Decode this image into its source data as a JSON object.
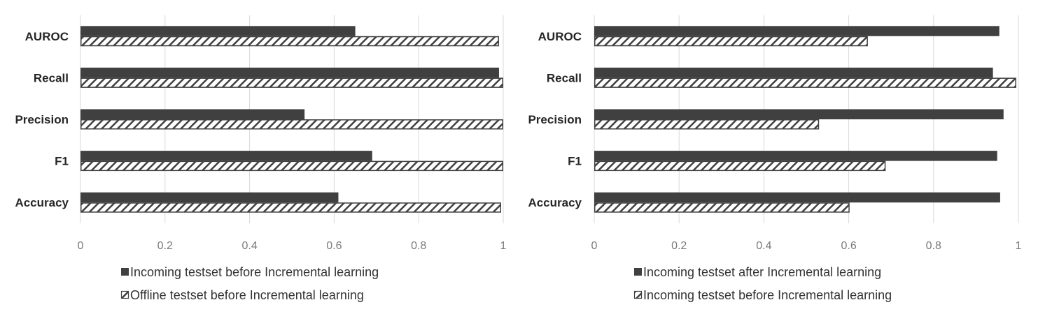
{
  "colors": {
    "solid": "#404040",
    "hatch_stroke": "#404040",
    "grid": "#d9d9d9",
    "background": "#ffffff"
  },
  "chart_data": [
    {
      "type": "bar",
      "orientation": "horizontal",
      "categories": [
        "AUROC",
        "Recall",
        "Precision",
        "F1",
        "Accuracy"
      ],
      "series": [
        {
          "name": "Incoming testset before Incremental learning",
          "style": "solid",
          "values": [
            0.65,
            0.99,
            0.53,
            0.69,
            0.61
          ]
        },
        {
          "name": "Offline testset before Incremental learning",
          "style": "hatched",
          "values": [
            0.99,
            1.0,
            1.0,
            1.0,
            0.995
          ]
        }
      ],
      "xlim": [
        0,
        1
      ],
      "xticks": [
        "0",
        "0.2",
        "0.4",
        "0.6",
        "0.8",
        "1"
      ],
      "grid": true,
      "legend_position": "bottom"
    },
    {
      "type": "bar",
      "orientation": "horizontal",
      "categories": [
        "AUROC",
        "Recall",
        "Precision",
        "F1",
        "Accuracy"
      ],
      "series": [
        {
          "name": "Incoming testset after Incremental learning",
          "style": "solid",
          "values": [
            0.955,
            0.94,
            0.965,
            0.95,
            0.957
          ]
        },
        {
          "name": "Incoming testset before Incremental learning",
          "style": "hatched",
          "values": [
            0.645,
            0.995,
            0.53,
            0.687,
            0.602
          ]
        }
      ],
      "xlim": [
        0,
        1
      ],
      "xticks": [
        "0",
        "0.2",
        "0.4",
        "0.6",
        "0.8",
        "1"
      ],
      "grid": true,
      "legend_position": "bottom"
    }
  ]
}
